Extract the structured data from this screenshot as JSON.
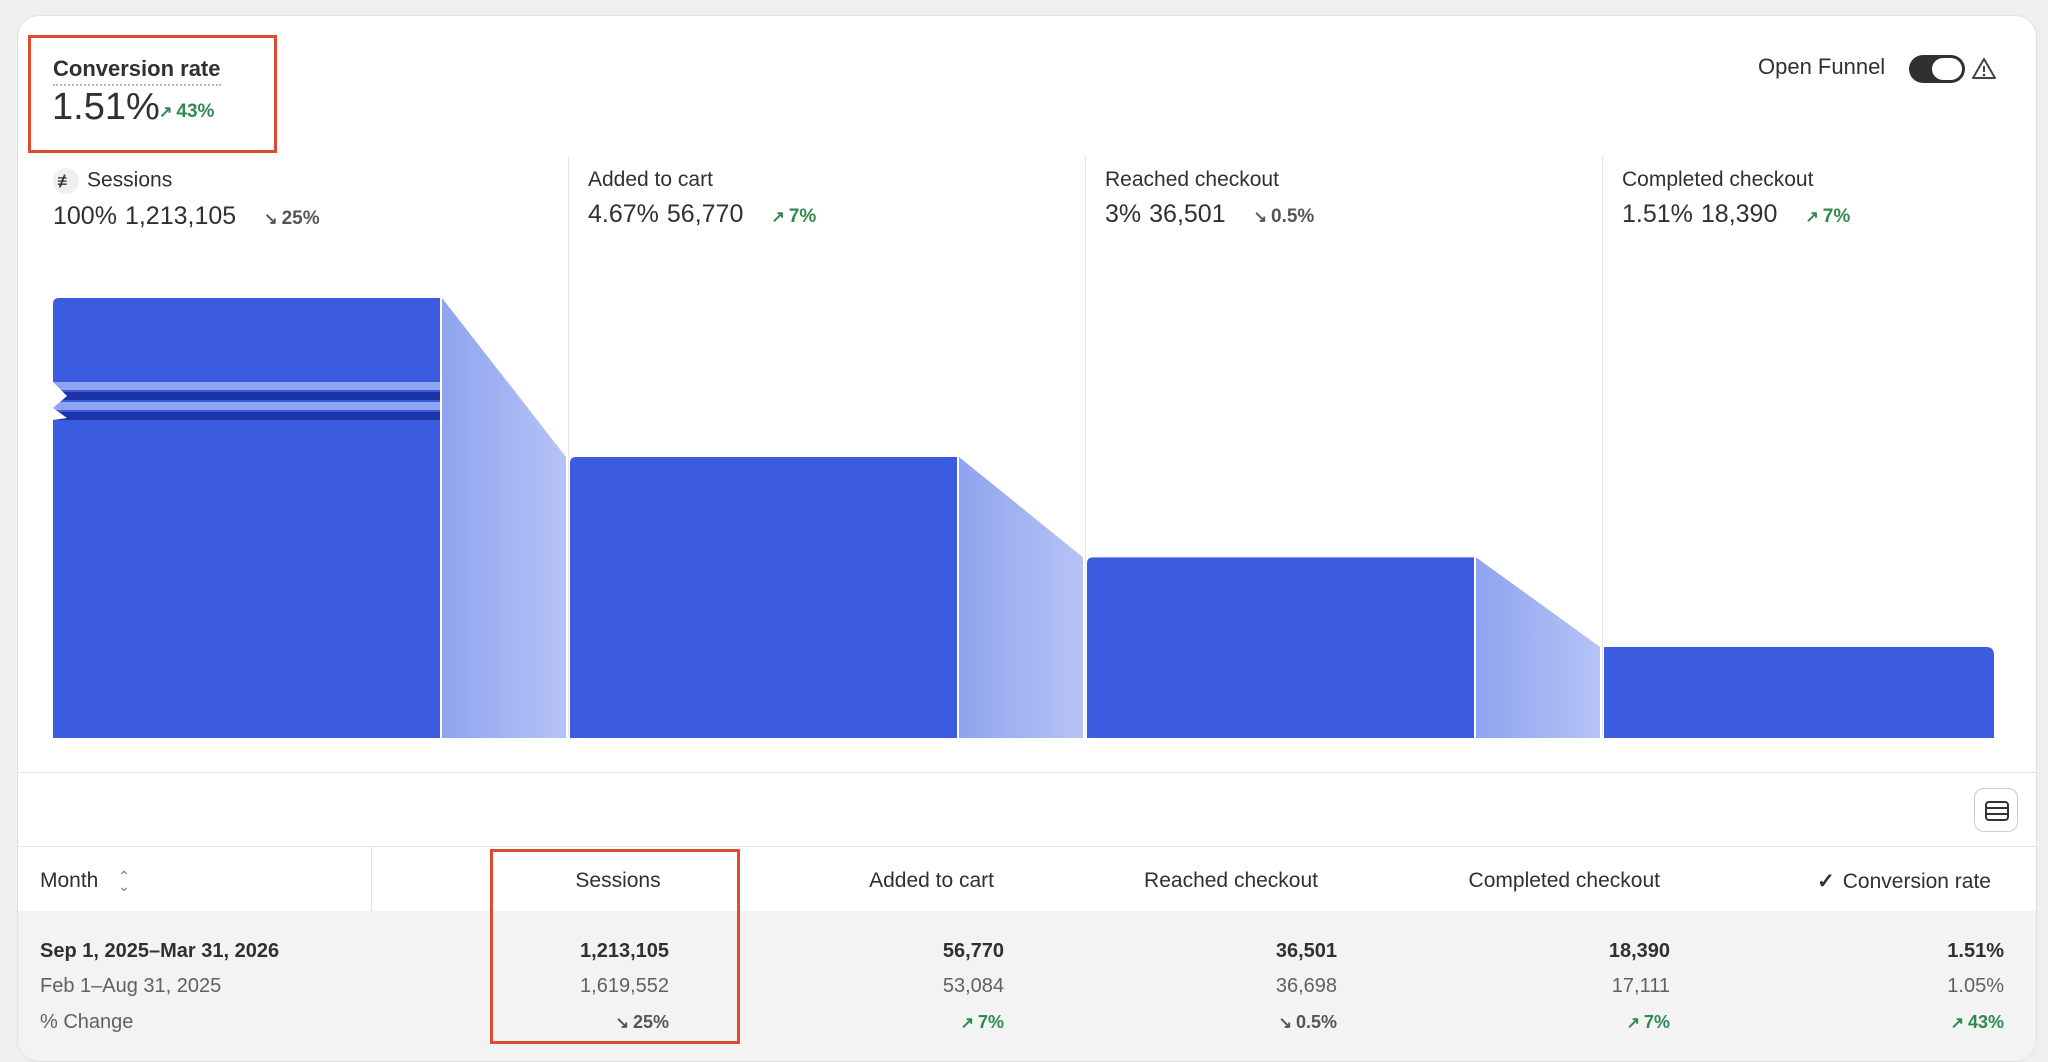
{
  "header": {
    "kpi_title": "Conversion rate",
    "kpi_value": "1.51%",
    "kpi_change": "43%",
    "kpi_change_dir": "up",
    "open_funnel_label": "Open Funnel",
    "open_funnel_on": true,
    "warning_icon": "warning-triangle-icon"
  },
  "colors": {
    "bar": "#3b5ce0",
    "connector_dark": "#8fa3ef",
    "connector_light": "#b6c3f6",
    "positive": "#2e8a4e",
    "highlight": "#df4a33"
  },
  "chart_data": {
    "type": "bar",
    "categories": [
      "Sessions",
      "Added to cart",
      "Reached checkout",
      "Completed checkout"
    ],
    "percent_labels": [
      "100%",
      "4.67%",
      "3%",
      "1.51%"
    ],
    "count_labels": [
      "1,213,105",
      "56,770",
      "36,501",
      "18,390"
    ],
    "values": [
      1213105,
      56770,
      36501,
      18390
    ],
    "changes": [
      "25%",
      "7%",
      "0.5%",
      "7%"
    ],
    "change_dirs": [
      "down",
      "up",
      "down",
      "up"
    ],
    "axis_break_on_first_bar": true
  },
  "table": {
    "columns": [
      "Month",
      "Sessions",
      "Added to cart",
      "Reached checkout",
      "Completed checkout",
      "Conversion rate"
    ],
    "sort_icon": "sort-updown-icon",
    "selected_column_icon": "check-icon",
    "rows": [
      {
        "label": "Sep 1, 2025–Mar 31, 2026",
        "values": [
          "1,213,105",
          "56,770",
          "36,501",
          "18,390",
          "1.51%"
        ]
      },
      {
        "label": "Feb 1–Aug 31, 2025",
        "values": [
          "1,619,552",
          "53,084",
          "36,698",
          "17,111",
          "1.05%"
        ]
      }
    ],
    "change_row": {
      "label": "% Change",
      "values": [
        "25%",
        "7%",
        "0.5%",
        "7%",
        "43%"
      ],
      "dirs": [
        "down",
        "up",
        "down",
        "up",
        "up"
      ]
    }
  }
}
